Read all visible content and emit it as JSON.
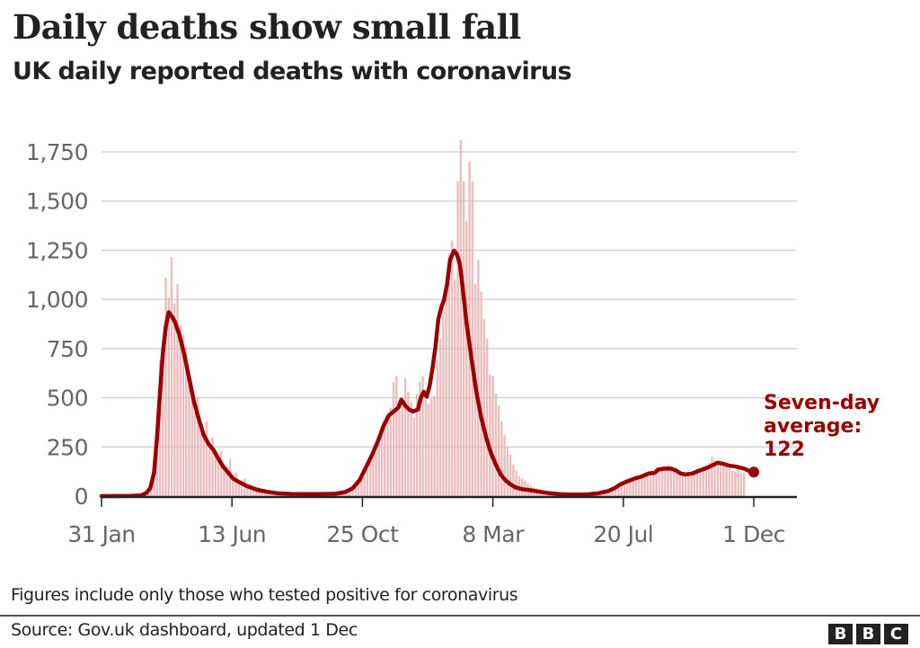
{
  "header": {
    "title": "Daily deaths show small fall",
    "subtitle": "UK daily reported deaths with coronavirus"
  },
  "footer": {
    "note": "Figures include only those who tested positive for coronavirus",
    "source": "Source: Gov.uk dashboard, updated 1 Dec",
    "logo_letters": [
      "B",
      "B",
      "C"
    ]
  },
  "colors": {
    "line": "#990000",
    "bars": "#e8b4b4",
    "grid": "#cccccc",
    "axis": "#222222",
    "annotation": "#990000"
  },
  "chart_data": {
    "type": "bar",
    "title": "Daily deaths show small fall",
    "subtitle": "UK daily reported deaths with coronavirus",
    "xlabel": "",
    "ylabel": "",
    "x_unit": "days since 31 Jan 2020",
    "xlim": [
      0,
      670
    ],
    "ylim": [
      0,
      1750
    ],
    "grid": true,
    "y_ticks": [
      0,
      250,
      500,
      750,
      1000,
      1250,
      1500,
      1750
    ],
    "y_tick_labels": [
      "0",
      "250",
      "500",
      "750",
      "1,000",
      "1,250",
      "1,500",
      "1,750"
    ],
    "x_ticks": [
      0,
      134,
      268,
      402,
      536,
      670
    ],
    "x_tick_labels": [
      "31 Jan",
      "13 Jun",
      "25 Oct",
      "8 Mar",
      "20 Jul",
      "1 Dec"
    ],
    "annotation": {
      "lines": [
        "Seven-day",
        "average:",
        "122"
      ],
      "value": 122,
      "at_day": 670
    },
    "series": [
      {
        "name": "Daily reported deaths",
        "type": "bar",
        "x_step_days": 3,
        "values": [
          0,
          0,
          0,
          0,
          0,
          0,
          0,
          0,
          0,
          0,
          0,
          0,
          1,
          2,
          3,
          6,
          14,
          40,
          160,
          380,
          690,
          760,
          1110,
          1010,
          1215,
          980,
          1080,
          870,
          820,
          760,
          620,
          560,
          430,
          500,
          350,
          300,
          380,
          250,
          300,
          230,
          175,
          230,
          160,
          150,
          190,
          100,
          120,
          80,
          80,
          90,
          60,
          60,
          50,
          40,
          45,
          30,
          20,
          30,
          18,
          20,
          14,
          22,
          10,
          12,
          16,
          8,
          12,
          10,
          14,
          9,
          10,
          12,
          8,
          11,
          10,
          10,
          12,
          9,
          14,
          11,
          18,
          15,
          20,
          28,
          30,
          40,
          55,
          60,
          80,
          100,
          95,
          135,
          180,
          210,
          250,
          270,
          320,
          360,
          400,
          450,
          580,
          610,
          430,
          470,
          600,
          530,
          480,
          400,
          520,
          580,
          610,
          490,
          470,
          500,
          510,
          690,
          800,
          960,
          1040,
          1230,
          1300,
          1100,
          1600,
          1810,
          1600,
          1400,
          1700,
          1600,
          1080,
          1200,
          1040,
          900,
          800,
          620,
          610,
          520,
          460,
          380,
          310,
          250,
          210,
          160,
          130,
          100,
          90,
          80,
          64,
          55,
          45,
          40,
          36,
          30,
          27,
          24,
          20,
          18,
          15,
          12,
          11,
          10,
          9,
          8,
          8,
          7,
          8,
          6,
          7,
          9,
          8,
          10,
          9,
          12,
          14,
          16,
          20,
          26,
          32,
          40,
          52,
          70,
          74,
          80,
          95,
          100,
          90,
          110,
          105,
          120,
          130,
          110,
          150,
          140,
          130,
          150,
          160,
          145,
          135,
          120,
          110,
          115,
          100,
          120,
          115,
          120,
          130,
          140,
          150,
          155,
          170,
          200,
          180,
          170,
          160,
          175,
          150,
          140,
          130,
          125,
          140,
          120,
          122
        ]
      },
      {
        "name": "Seven-day average",
        "type": "line",
        "points": [
          [
            0,
            0
          ],
          [
            30,
            1
          ],
          [
            40,
            3
          ],
          [
            46,
            15
          ],
          [
            50,
            40
          ],
          [
            54,
            120
          ],
          [
            57,
            300
          ],
          [
            60,
            520
          ],
          [
            63,
            730
          ],
          [
            66,
            860
          ],
          [
            69,
            935
          ],
          [
            72,
            915
          ],
          [
            75,
            890
          ],
          [
            80,
            820
          ],
          [
            85,
            720
          ],
          [
            90,
            600
          ],
          [
            95,
            480
          ],
          [
            100,
            390
          ],
          [
            105,
            310
          ],
          [
            110,
            265
          ],
          [
            115,
            235
          ],
          [
            120,
            190
          ],
          [
            125,
            150
          ],
          [
            130,
            120
          ],
          [
            135,
            90
          ],
          [
            140,
            75
          ],
          [
            145,
            62
          ],
          [
            150,
            50
          ],
          [
            160,
            32
          ],
          [
            170,
            22
          ],
          [
            180,
            15
          ],
          [
            195,
            11
          ],
          [
            210,
            10
          ],
          [
            225,
            10
          ],
          [
            240,
            12
          ],
          [
            250,
            20
          ],
          [
            258,
            40
          ],
          [
            265,
            80
          ],
          [
            272,
            150
          ],
          [
            278,
            210
          ],
          [
            284,
            280
          ],
          [
            290,
            360
          ],
          [
            295,
            410
          ],
          [
            300,
            430
          ],
          [
            305,
            450
          ],
          [
            308,
            490
          ],
          [
            312,
            460
          ],
          [
            316,
            440
          ],
          [
            320,
            430
          ],
          [
            325,
            440
          ],
          [
            328,
            500
          ],
          [
            331,
            530
          ],
          [
            334,
            505
          ],
          [
            337,
            560
          ],
          [
            340,
            650
          ],
          [
            343,
            760
          ],
          [
            346,
            900
          ],
          [
            349,
            960
          ],
          [
            352,
            1000
          ],
          [
            355,
            1080
          ],
          [
            358,
            1200
          ],
          [
            362,
            1248
          ],
          [
            365,
            1230
          ],
          [
            368,
            1180
          ],
          [
            371,
            1060
          ],
          [
            375,
            880
          ],
          [
            380,
            700
          ],
          [
            385,
            530
          ],
          [
            390,
            400
          ],
          [
            395,
            300
          ],
          [
            400,
            220
          ],
          [
            405,
            160
          ],
          [
            410,
            110
          ],
          [
            415,
            80
          ],
          [
            420,
            60
          ],
          [
            425,
            45
          ],
          [
            432,
            35
          ],
          [
            440,
            30
          ],
          [
            450,
            22
          ],
          [
            460,
            15
          ],
          [
            470,
            10
          ],
          [
            480,
            8
          ],
          [
            490,
            8
          ],
          [
            500,
            9
          ],
          [
            510,
            14
          ],
          [
            520,
            25
          ],
          [
            527,
            40
          ],
          [
            533,
            60
          ],
          [
            540,
            75
          ],
          [
            548,
            90
          ],
          [
            555,
            100
          ],
          [
            562,
            115
          ],
          [
            568,
            118
          ],
          [
            572,
            135
          ],
          [
            578,
            140
          ],
          [
            585,
            140
          ],
          [
            590,
            130
          ],
          [
            595,
            115
          ],
          [
            600,
            110
          ],
          [
            607,
            115
          ],
          [
            613,
            128
          ],
          [
            620,
            140
          ],
          [
            627,
            155
          ],
          [
            633,
            170
          ],
          [
            638,
            165
          ],
          [
            645,
            155
          ],
          [
            652,
            150
          ],
          [
            660,
            140
          ],
          [
            665,
            128
          ],
          [
            670,
            122
          ]
        ]
      }
    ]
  }
}
